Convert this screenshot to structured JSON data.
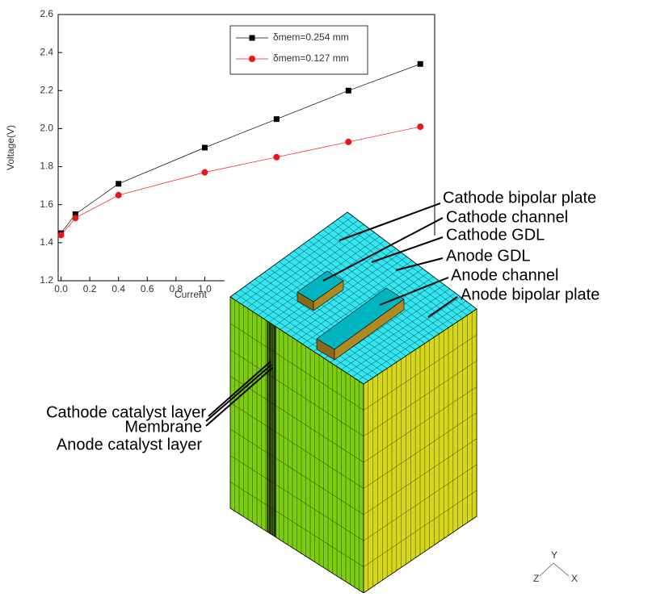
{
  "chart_data": {
    "type": "line",
    "x_label": "Current",
    "y_label": "Voltage(V)",
    "x": [
      0,
      0.1,
      0.4,
      1.0,
      1.5,
      2.0,
      2.5
    ],
    "series": [
      {
        "name": "δmem=0.254 mm",
        "color": "#000000",
        "marker": "square",
        "values": [
          1.45,
          1.55,
          1.71,
          1.9,
          2.05,
          2.2,
          2.34
        ]
      },
      {
        "name": "δmem=0.127 mm",
        "color": "#e8161b",
        "marker": "circle",
        "values": [
          1.44,
          1.53,
          1.65,
          1.77,
          1.85,
          1.93,
          2.01
        ]
      }
    ],
    "xlim": [
      -0.02,
      2.6
    ],
    "ylim": [
      1.2,
      2.6
    ],
    "xticks": [
      {
        "value": 0,
        "label": "0.0"
      },
      0.2,
      0.4,
      0.6,
      0.8,
      {
        "value": 1,
        "label": "1.0"
      }
    ],
    "yticks": [
      1.2,
      1.4,
      1.6,
      1.8,
      {
        "value": 2,
        "label": "2.0"
      },
      2.2,
      2.4,
      2.6
    ]
  },
  "diagram": {
    "labels": [
      "Cathode bipolar plate",
      "Cathode channel",
      "Cathode GDL",
      "Anode GDL",
      "Anode channel",
      "Anode bipolar plate",
      "Cathode catalyst layer",
      "Membrane",
      "Anode catalyst layer"
    ],
    "axes": [
      "Y",
      "Z",
      "X"
    ]
  }
}
